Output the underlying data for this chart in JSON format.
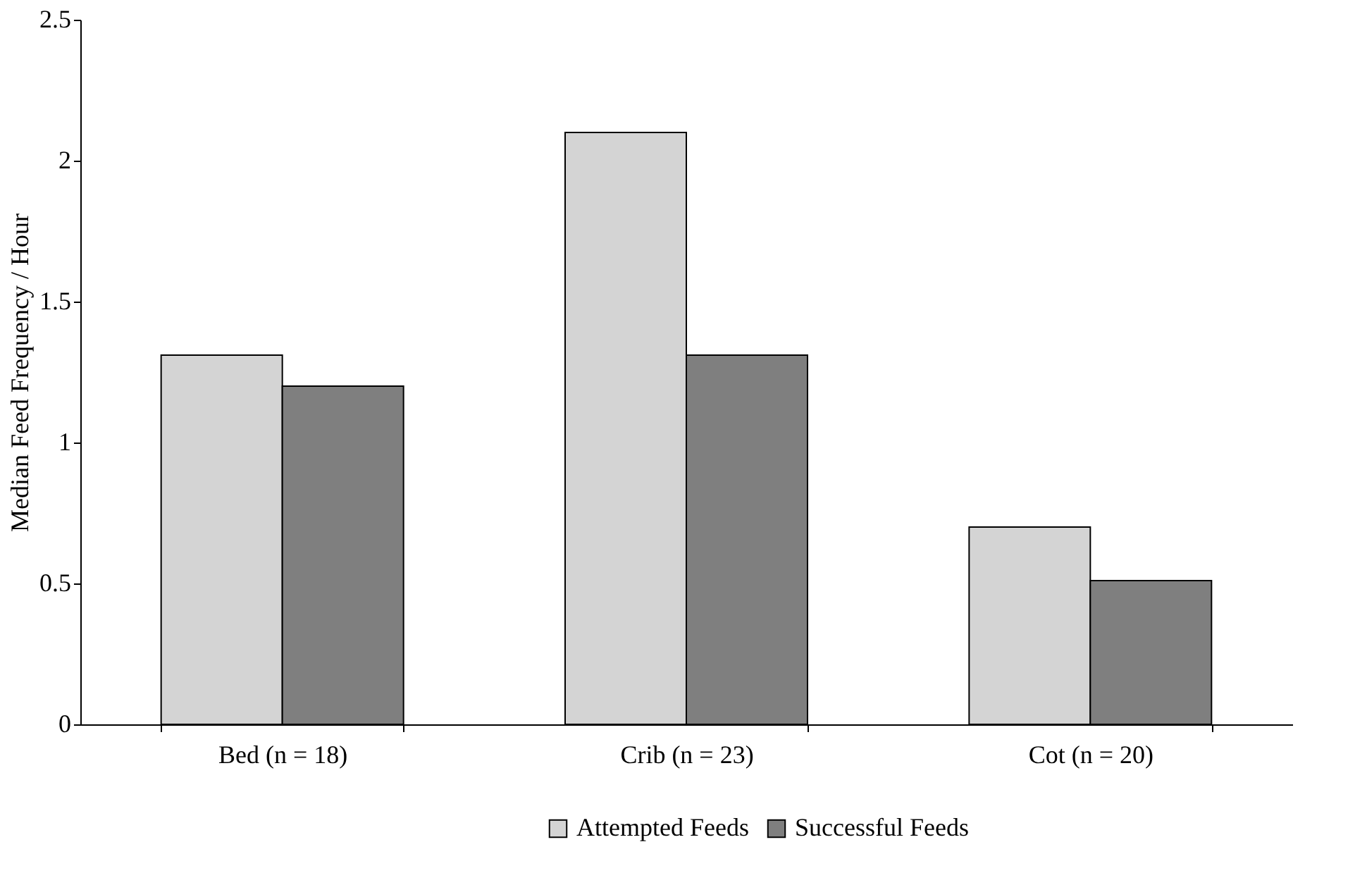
{
  "chart_data": {
    "type": "bar",
    "ylabel": "Median Feed Frequency / Hour",
    "categories": [
      "Bed (n = 18)",
      "Crib (n = 23)",
      "Cot (n = 20)"
    ],
    "series": [
      {
        "name": "Attempted Feeds",
        "color": "#d4d4d4",
        "values": [
          1.31,
          2.1,
          0.7
        ]
      },
      {
        "name": "Successful Feeds",
        "color": "#7f7f7f",
        "values": [
          1.2,
          1.31,
          0.51
        ]
      }
    ],
    "ylim": [
      0,
      2.5
    ],
    "yticks": [
      0,
      0.5,
      1,
      1.5,
      2,
      2.5
    ],
    "grid": false,
    "legend": "bottom"
  }
}
